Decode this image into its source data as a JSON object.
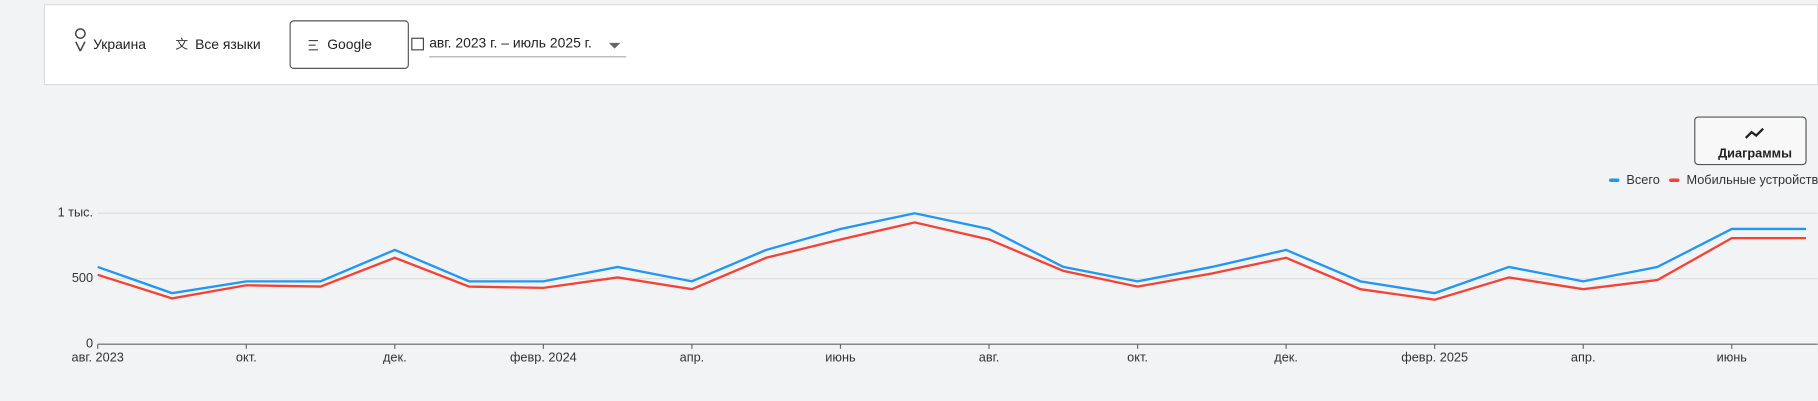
{
  "filters": {
    "location": "Украина",
    "language": "Все языки",
    "search": "Google",
    "date_range": "авг. 2023 г. – июль 2025 г."
  },
  "chart_button": "Диаграммы",
  "chart_data": {
    "type": "line",
    "categories": [
      "авг. 2023",
      null,
      "окт.",
      null,
      "дек.",
      null,
      "февр. 2024",
      null,
      "апр.",
      null,
      "июнь",
      null,
      "авг.",
      null,
      "окт.",
      null,
      "дек.",
      null,
      "февр. 2025",
      null,
      "апр.",
      null,
      "июнь",
      null
    ],
    "series": [
      {
        "name": "Всего",
        "color": "#2196f3",
        "values": [
          590,
          390,
          480,
          480,
          720,
          480,
          480,
          590,
          480,
          720,
          880,
          1000,
          880,
          590,
          480,
          590,
          720,
          480,
          390,
          590,
          480,
          590,
          880,
          880
        ]
      },
      {
        "name": "Мобильные устройства",
        "color": "#f44336",
        "values": [
          530,
          350,
          450,
          440,
          660,
          440,
          430,
          510,
          420,
          660,
          800,
          930,
          800,
          560,
          440,
          540,
          660,
          420,
          340,
          510,
          420,
          490,
          810,
          810
        ]
      }
    ],
    "ylim": [
      0,
      1000
    ],
    "yticks": [
      0,
      500,
      {
        "value": 1000,
        "label": "1 тыс."
      }
    ],
    "grid": true,
    "legend": "top-right"
  }
}
